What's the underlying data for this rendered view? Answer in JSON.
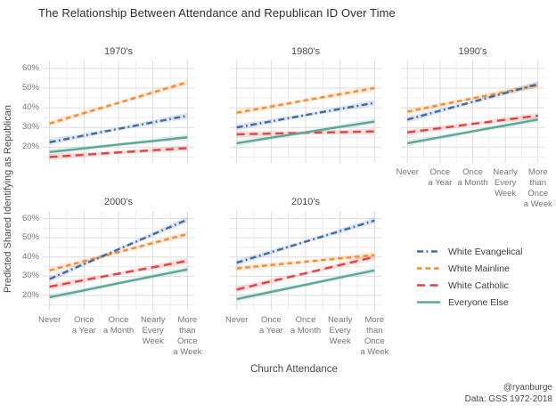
{
  "title": "The Relationship Between Attendance and Republican ID Over Time",
  "y_axis": {
    "label": "Predicted Shared Identifying as Republican",
    "tick_labels": [
      "60%",
      "50%",
      "40%",
      "30%",
      "20%"
    ],
    "tick_values": [
      60,
      50,
      40,
      30,
      20
    ]
  },
  "x_axis": {
    "label": "Church Attendance",
    "categories": [
      "Never",
      "Once a Year",
      "Once a Month",
      "Nearly Every Week",
      "More than Once a Week"
    ],
    "category_lines": [
      [
        "Never"
      ],
      [
        "Once",
        "a Year"
      ],
      [
        "Once",
        "a Month"
      ],
      [
        "Nearly",
        "Every",
        "Week"
      ],
      [
        "More",
        "than",
        "Once",
        "a Week"
      ]
    ]
  },
  "caption": {
    "handle": "@ryanburge",
    "source": "Data: GSS 1972-2018"
  },
  "legend": {
    "items": [
      {
        "name": "White Evangelical",
        "color": "#406ba0",
        "dash": "7 3.5 1.8 3.5"
      },
      {
        "name": "White Mainline",
        "color": "#f58b2e",
        "dash": "5.5 4"
      },
      {
        "name": "White Catholic",
        "color": "#e04344",
        "dash": "9 5.5"
      },
      {
        "name": "Everyone Else",
        "color": "#5ea796",
        "dash": ""
      }
    ]
  },
  "chart_data": {
    "type": "line",
    "title": "The Relationship Between Attendance and Republican ID Over Time",
    "xlabel": "Church Attendance",
    "ylabel": "Predicted Shared Identifying as Republican",
    "categories": [
      "Never",
      "Once a Year",
      "Once a Month",
      "Nearly Every Week",
      "More than Once a Week"
    ],
    "unit": "percent",
    "ylim": [
      12,
      64
    ],
    "grid": true,
    "legend_position": "right-bottom",
    "facets": [
      {
        "title": "1970's",
        "series": [
          {
            "name": "White Evangelical",
            "values": [
              22.5,
              25.9,
              29.3,
              32.6,
              36
            ]
          },
          {
            "name": "White Mainline",
            "values": [
              32,
              37.3,
              42.5,
              47.8,
              53
            ]
          },
          {
            "name": "White Catholic",
            "values": [
              15,
              16.1,
              17.3,
              18.4,
              19.5
            ]
          },
          {
            "name": "Everyone Else",
            "values": [
              17.5,
              19.4,
              21.3,
              23.1,
              25
            ]
          }
        ]
      },
      {
        "title": "1980's",
        "series": [
          {
            "name": "White Evangelical",
            "values": [
              30,
              33.1,
              36.3,
              39.4,
              42.5
            ]
          },
          {
            "name": "White Mainline",
            "values": [
              37.5,
              40.6,
              43.8,
              46.9,
              50
            ]
          },
          {
            "name": "White Catholic",
            "values": [
              26.5,
              26.9,
              27.3,
              27.6,
              28
            ]
          },
          {
            "name": "Everyone Else",
            "values": [
              22,
              24.8,
              27.5,
              30.3,
              33
            ]
          }
        ]
      },
      {
        "title": "1990's",
        "series": [
          {
            "name": "White Evangelical",
            "values": [
              34,
              38.5,
              43,
              47.5,
              52
            ]
          },
          {
            "name": "White Mainline",
            "values": [
              38,
              41.4,
              44.8,
              48.1,
              51.5
            ]
          },
          {
            "name": "White Catholic",
            "values": [
              27.5,
              29.6,
              31.8,
              33.9,
              36
            ]
          },
          {
            "name": "Everyone Else",
            "values": [
              22,
              25,
              28,
              31,
              34
            ]
          }
        ]
      },
      {
        "title": "2000's",
        "series": [
          {
            "name": "White Evangelical",
            "values": [
              28.5,
              36.3,
              44,
              51.8,
              59.5
            ]
          },
          {
            "name": "White Mainline",
            "values": [
              33,
              37.8,
              42.5,
              47.3,
              52
            ]
          },
          {
            "name": "White Catholic",
            "values": [
              24.5,
              27.9,
              31.3,
              34.6,
              38
            ]
          },
          {
            "name": "Everyone Else",
            "values": [
              19,
              22.6,
              26.3,
              29.9,
              33.5
            ]
          }
        ]
      },
      {
        "title": "2010's",
        "series": [
          {
            "name": "White Evangelical",
            "values": [
              37,
              42.5,
              48,
              53.5,
              59
            ]
          },
          {
            "name": "White Mainline",
            "values": [
              34,
              35.8,
              37.5,
              39.3,
              41
            ]
          },
          {
            "name": "White Catholic",
            "values": [
              23,
              27.3,
              31.5,
              35.8,
              40
            ]
          },
          {
            "name": "Everyone Else",
            "values": [
              18,
              21.8,
              25.5,
              29.3,
              33
            ]
          }
        ]
      }
    ]
  }
}
